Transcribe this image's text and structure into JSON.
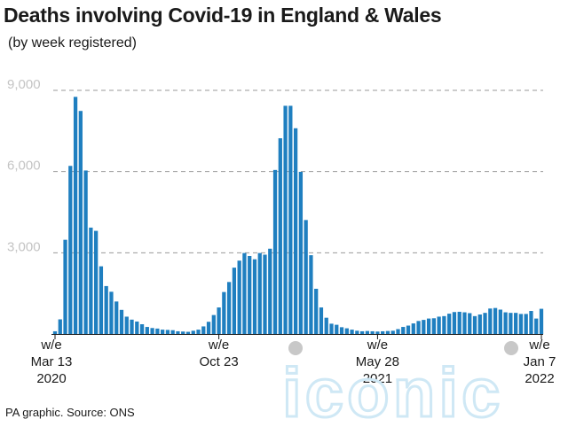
{
  "header": {
    "title": "Deaths involving Covid-19 in England & Wales",
    "subtitle": "(by week registered)"
  },
  "footer": {
    "source": "PA graphic. Source: ONS"
  },
  "colors": {
    "bar": "#1f7fc0",
    "grid": "#9a9a9a",
    "watermark": "#cfe8f5"
  },
  "watermark": {
    "text": "iconic"
  },
  "chart_data": {
    "type": "bar",
    "title": "Deaths involving Covid-19 in England & Wales",
    "subtitle": "(by week registered)",
    "xlabel": "",
    "ylabel": "",
    "ylim": [
      0,
      9000
    ],
    "yticks": [
      {
        "value": 3000,
        "label": "3,000"
      },
      {
        "value": 6000,
        "label": "6,000"
      },
      {
        "value": 9000,
        "label": "9,000"
      }
    ],
    "xticks": [
      {
        "index": 0,
        "lines": [
          "w/e",
          "Mar 13",
          "2020"
        ]
      },
      {
        "index": 32,
        "lines": [
          "w/e",
          "Oct 23"
        ]
      },
      {
        "index": 63,
        "lines": [
          "w/e",
          "May 28",
          "2021"
        ]
      },
      {
        "index": 95,
        "lines": [
          "w/e",
          "Jan 7",
          "2022"
        ]
      }
    ],
    "grid": "horizontal-dashed",
    "values": [
      100,
      540,
      3480,
      6210,
      8760,
      8240,
      6040,
      3930,
      3810,
      2500,
      1770,
      1560,
      1200,
      890,
      640,
      530,
      460,
      360,
      260,
      220,
      200,
      160,
      150,
      140,
      100,
      90,
      80,
      120,
      160,
      280,
      450,
      700,
      980,
      1550,
      1920,
      2450,
      2710,
      2990,
      2880,
      2760,
      2990,
      2930,
      3150,
      6060,
      7230,
      8430,
      8430,
      7600,
      5990,
      4210,
      2910,
      1670,
      980,
      600,
      380,
      340,
      250,
      210,
      160,
      120,
      100,
      110,
      100,
      90,
      100,
      110,
      120,
      180,
      260,
      310,
      390,
      480,
      520,
      570,
      580,
      640,
      660,
      750,
      810,
      820,
      800,
      770,
      660,
      720,
      780,
      940,
      960,
      900,
      800,
      780,
      780,
      740,
      740,
      850,
      570,
      930
    ]
  }
}
